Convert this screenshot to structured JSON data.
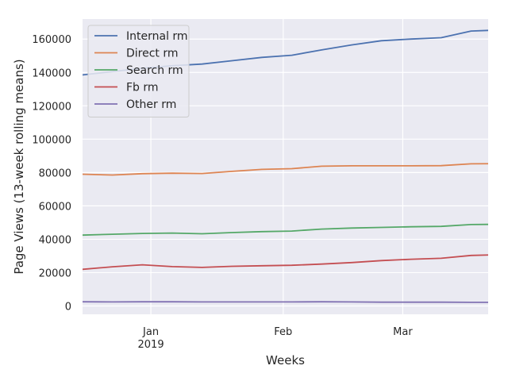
{
  "chart_data": {
    "type": "line",
    "title": "",
    "xlabel": "Weeks",
    "ylabel": "Page Views (13-week rolling means)",
    "x": [
      "2018-12-16",
      "2018-12-23",
      "2018-12-30",
      "2019-01-06",
      "2019-01-13",
      "2019-01-20",
      "2019-01-27",
      "2019-02-03",
      "2019-02-10",
      "2019-02-17",
      "2019-02-24",
      "2019-03-03",
      "2019-03-10",
      "2019-03-17",
      "2019-03-24"
    ],
    "ylim": [
      -5000,
      172000
    ],
    "yticks": [
      0,
      20000,
      40000,
      60000,
      80000,
      100000,
      120000,
      140000,
      160000
    ],
    "ytick_labels": [
      "0",
      "20000",
      "40000",
      "60000",
      "80000",
      "100000",
      "120000",
      "140000",
      "160000"
    ],
    "xticks": [
      {
        "date": "2019-01-01",
        "label": "Jan",
        "sublabel": "2019"
      },
      {
        "date": "2019-02-01",
        "label": "Feb",
        "sublabel": ""
      },
      {
        "date": "2019-03-01",
        "label": "Mar",
        "sublabel": ""
      }
    ],
    "grid": true,
    "legend_position": "top-left",
    "series": [
      {
        "name": "Internal rm",
        "color": "#4c72b0",
        "values": [
          138500,
          140500,
          142500,
          144000,
          145000,
          147000,
          149000,
          150300,
          153500,
          156500,
          159000,
          160000,
          160800,
          164800,
          165500
        ]
      },
      {
        "name": "Direct rm",
        "color": "#dd8452",
        "values": [
          79000,
          78500,
          79300,
          79600,
          79400,
          80700,
          81900,
          82300,
          83800,
          84000,
          84000,
          84000,
          84100,
          85200,
          85300
        ]
      },
      {
        "name": "Search rm",
        "color": "#55a868",
        "values": [
          42500,
          43000,
          43500,
          43700,
          43300,
          44000,
          44600,
          44900,
          46100,
          46700,
          47100,
          47500,
          47700,
          48800,
          49000
        ]
      },
      {
        "name": "Fb rm",
        "color": "#c44e52",
        "values": [
          22000,
          23500,
          24700,
          23600,
          23100,
          23800,
          24100,
          24400,
          25100,
          26000,
          27200,
          28000,
          28600,
          30300,
          30800
        ]
      },
      {
        "name": "Other rm",
        "color": "#8172b3",
        "values": [
          2500,
          2400,
          2500,
          2500,
          2400,
          2400,
          2400,
          2400,
          2500,
          2400,
          2300,
          2300,
          2300,
          2200,
          2200
        ]
      }
    ]
  },
  "style": {
    "plot_background": "#eaeaf2",
    "grid_color": "#ffffff",
    "legend_background": "#eaeaf2",
    "legend_border": "#cccccc"
  }
}
